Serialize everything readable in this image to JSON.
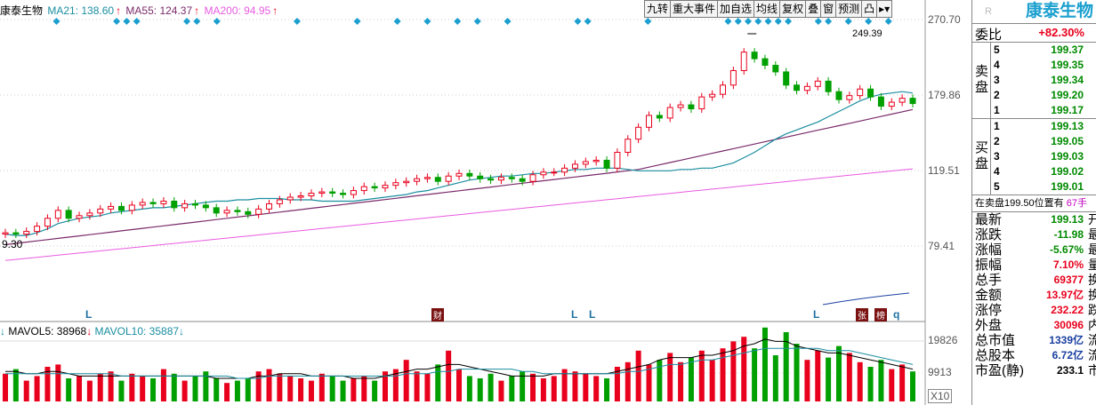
{
  "stock": {
    "name": "康泰生物"
  },
  "ma_legend": [
    {
      "label": "MA21: 138.60",
      "color": "#1a8ea0"
    },
    {
      "label": "MA55: 124.37",
      "color": "#7a2a6a"
    },
    {
      "label": "MA200: 94.95",
      "color": "#e85be0"
    }
  ],
  "toolbar": [
    "九转",
    "重大事件",
    "加自选",
    "均线",
    "复权",
    "叠",
    "窗",
    "预测",
    "凸",
    "▸▾"
  ],
  "price_axis": {
    "top": "270.70",
    "mid1": "179.86",
    "mid2": "119.51",
    "low": "79.41",
    "left_low": "9.30"
  },
  "high_annotation": "249.39",
  "markers": {
    "L": "L",
    "cai": "财",
    "zhang": "张",
    "ku": "榜",
    "q": "q"
  },
  "vol_legend": {
    "mavol5": "MAVOL5: 38968",
    "mavol10": "MAVOL10: 35887"
  },
  "vol_axis": {
    "top": "19826",
    "mid": "9913",
    "unit": "X10"
  },
  "colors": {
    "up": "#e8001c",
    "down": "#00a000",
    "ma21": "#1a8ea0",
    "ma55": "#7a2a6a",
    "ma200": "#e85be0"
  },
  "chart_data": {
    "type": "candlestick",
    "ylim": [
      70,
      270.7
    ],
    "ma21": [
      108,
      107,
      107,
      109,
      112,
      116,
      118,
      120,
      121,
      122,
      124,
      125,
      126,
      127,
      128,
      128,
      129,
      130,
      131,
      132,
      133,
      133,
      134,
      134,
      135,
      135,
      135,
      134,
      134,
      134,
      133,
      133,
      133,
      133,
      134,
      135,
      136,
      137,
      138,
      140,
      141,
      143,
      145,
      147,
      149,
      150,
      151,
      152,
      152,
      153,
      154,
      154,
      155,
      156,
      157,
      157,
      158,
      158,
      158,
      157,
      156,
      156,
      156,
      156,
      157,
      157,
      158,
      158,
      160,
      162,
      166,
      170,
      175,
      180,
      184,
      187,
      190,
      193,
      197,
      201,
      205,
      209,
      212,
      214,
      215,
      216,
      215
    ],
    "closes": [
      109,
      108,
      110,
      114,
      120,
      126,
      120,
      122,
      124,
      127,
      129,
      126,
      130,
      132,
      131,
      133,
      128,
      131,
      130,
      128,
      124,
      126,
      125,
      123,
      127,
      131,
      134,
      136,
      137,
      139,
      140,
      139,
      138,
      141,
      144,
      143,
      145,
      147,
      148,
      150,
      151,
      148,
      152,
      154,
      152,
      150,
      149,
      151,
      150,
      148,
      153,
      155,
      155,
      158,
      161,
      163,
      164,
      158,
      170,
      180,
      189,
      198,
      196,
      204,
      206,
      203,
      212,
      214,
      221,
      232,
      246,
      241,
      236,
      231,
      221,
      217,
      220,
      224,
      216,
      210,
      213,
      218,
      212,
      205,
      208,
      211,
      207
    ],
    "volume": [
      12,
      14,
      9,
      11,
      15,
      16,
      10,
      11,
      9,
      12,
      13,
      9,
      12,
      11,
      10,
      14,
      12,
      9,
      11,
      13,
      10,
      8,
      9,
      10,
      13,
      14,
      12,
      11,
      10,
      9,
      12,
      11,
      9,
      10,
      11,
      9,
      13,
      14,
      18,
      13,
      12,
      16,
      22,
      14,
      11,
      10,
      12,
      9,
      11,
      13,
      12,
      10,
      11,
      14,
      13,
      12,
      11,
      10,
      15,
      17,
      22,
      16,
      18,
      21,
      17,
      19,
      22,
      18,
      23,
      26,
      28,
      23,
      32,
      20,
      30,
      25,
      18,
      22,
      19,
      24,
      21,
      17,
      15,
      18,
      14,
      16,
      13
    ],
    "mavol5": [
      13,
      13,
      12,
      12,
      13,
      13,
      12,
      11,
      11,
      11,
      11,
      11,
      11,
      11,
      11,
      11,
      11,
      11,
      11,
      11,
      10,
      10,
      10,
      10,
      11,
      11,
      12,
      12,
      12,
      11,
      11,
      11,
      11,
      10,
      10,
      10,
      11,
      12,
      13,
      14,
      14,
      15,
      16,
      16,
      15,
      14,
      13,
      12,
      11,
      11,
      11,
      11,
      12,
      12,
      12,
      12,
      12,
      12,
      13,
      14,
      15,
      16,
      18,
      19,
      19,
      19,
      20,
      20,
      21,
      22,
      24,
      25,
      27,
      26,
      26,
      24,
      23,
      22,
      21,
      21,
      20,
      19,
      18,
      17,
      16,
      15,
      14
    ],
    "mavol10": [
      12,
      12,
      12,
      12,
      12,
      12,
      12,
      12,
      12,
      12,
      12,
      11,
      11,
      11,
      11,
      11,
      11,
      11,
      11,
      11,
      11,
      11,
      10,
      10,
      10,
      11,
      11,
      11,
      11,
      11,
      11,
      11,
      11,
      11,
      11,
      11,
      11,
      11,
      12,
      12,
      12,
      13,
      13,
      14,
      14,
      14,
      14,
      14,
      14,
      13,
      13,
      12,
      12,
      12,
      12,
      12,
      12,
      12,
      12,
      13,
      13,
      14,
      15,
      16,
      16,
      17,
      18,
      18,
      19,
      20,
      21,
      22,
      23,
      23,
      23,
      23,
      23,
      23,
      22,
      22,
      22,
      21,
      20,
      19,
      18,
      17,
      16
    ]
  },
  "side": {
    "ratio_label": "委比",
    "ratio_value": "+82.30%",
    "sell_label": "卖盘",
    "buy_label": "买盘",
    "sell": [
      {
        "lvl": "5",
        "price": "199.37"
      },
      {
        "lvl": "4",
        "price": "199.35"
      },
      {
        "lvl": "3",
        "price": "199.34"
      },
      {
        "lvl": "2",
        "price": "199.20"
      },
      {
        "lvl": "1",
        "price": "199.17"
      }
    ],
    "buy": [
      {
        "lvl": "1",
        "price": "199.13"
      },
      {
        "lvl": "2",
        "price": "199.05"
      },
      {
        "lvl": "3",
        "price": "199.03"
      },
      {
        "lvl": "4",
        "price": "199.02"
      },
      {
        "lvl": "5",
        "price": "199.01"
      }
    ],
    "position_info": "在卖盘199.50位置有",
    "position_extra": "67手",
    "stats": [
      {
        "k": "最新",
        "v": "199.13",
        "s": "开",
        "c": "green"
      },
      {
        "k": "涨跌",
        "v": "-11.98",
        "s": "最",
        "c": "green"
      },
      {
        "k": "涨幅",
        "v": "-5.67%",
        "s": "最",
        "c": "green"
      },
      {
        "k": "振幅",
        "v": "7.10%",
        "s": "量",
        "c": "red"
      },
      {
        "k": "总手",
        "v": "69377",
        "s": "换",
        "c": "red"
      },
      {
        "k": "金额",
        "v": "13.97亿",
        "s": "换",
        "c": "red"
      },
      {
        "k": "涨停",
        "v": "232.22",
        "s": "跌",
        "c": "red"
      },
      {
        "k": "外盘",
        "v": "30096",
        "s": "内",
        "c": "red"
      },
      {
        "k": "总市值",
        "v": "1339亿",
        "s": "流",
        "c": "blue"
      },
      {
        "k": "总股本",
        "v": "6.72亿",
        "s": "流",
        "c": "blue"
      },
      {
        "k": "市盈(静)",
        "v": "233.1",
        "s": "市",
        "c": "black"
      }
    ]
  }
}
